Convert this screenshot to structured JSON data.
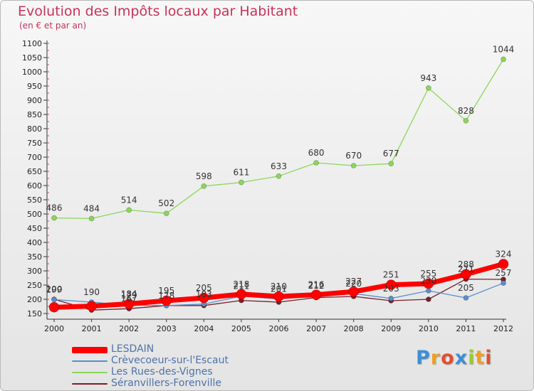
{
  "header": {
    "title": "Evolution des Impôts locaux par Habitant",
    "subtitle": "(en € et par an)"
  },
  "logo": {
    "text": "Proxiti"
  },
  "chart_data": {
    "type": "line",
    "title": "Evolution des Impôts locaux par Habitant",
    "subtitle": "(en € et par an)",
    "xlabel": "",
    "ylabel": "",
    "x": [
      "2000",
      "2001",
      "2002",
      "2003",
      "2004",
      "2005",
      "2006",
      "2007",
      "2008",
      "2009",
      "2010",
      "2011",
      "2012"
    ],
    "ylim": [
      150,
      1100
    ],
    "yticks": [
      150,
      200,
      250,
      300,
      350,
      400,
      450,
      500,
      550,
      600,
      650,
      700,
      750,
      800,
      850,
      900,
      950,
      1000,
      1050,
      1100
    ],
    "grid": false,
    "legend_position": "bottom-left",
    "series": [
      {
        "name": "LESDAIN",
        "color": "#ff0000",
        "values": [
          172,
          176,
          184,
          195,
          205,
          218,
          210,
          216,
          227,
          251,
          255,
          288,
          324
        ]
      },
      {
        "name": "Crèvecoeur-sur-l'Escaut",
        "color": "#5b8dc9",
        "values": [
          199,
          190,
          179,
          178,
          183,
          211,
          201,
          212,
          220,
          203,
          230,
          205,
          257
        ]
      },
      {
        "name": "Les Rues-des-Vignes",
        "color": "#8cd65a",
        "values": [
          486,
          484,
          514,
          502,
          598,
          611,
          633,
          680,
          670,
          677,
          943,
          828,
          1044
        ]
      },
      {
        "name": "Séranvillers-Forenville",
        "color": "#7a1f2b",
        "values": [
          200,
          162,
          167,
          178,
          178,
          196,
          190,
          206,
          210,
          195,
          200,
          271,
          270
        ]
      }
    ],
    "data_labels": [
      {
        "series": "LESDAIN",
        "values": [
          "",
          "",
          "184",
          "195",
          "205",
          "218",
          "210",
          "216",
          "227",
          "251",
          "255",
          "288",
          "324"
        ]
      },
      {
        "series": "Crèvecoeur-sur-l'Escaut",
        "values": [
          "199",
          "190",
          "179",
          "178",
          "183",
          "211",
          "201",
          "212",
          "220",
          "203",
          "230",
          "205",
          "257"
        ]
      },
      {
        "series": "Les Rues-des-Vignes",
        "values": [
          "486",
          "484",
          "514",
          "502",
          "598",
          "611",
          "633",
          "680",
          "670",
          "677",
          "943",
          "828",
          "1044"
        ]
      },
      {
        "series": "Séranvillers-Forenville",
        "values": [
          "200",
          "",
          "167",
          "",
          "",
          "",
          "",
          "",
          "",
          "",
          "",
          "271",
          ""
        ]
      }
    ]
  }
}
